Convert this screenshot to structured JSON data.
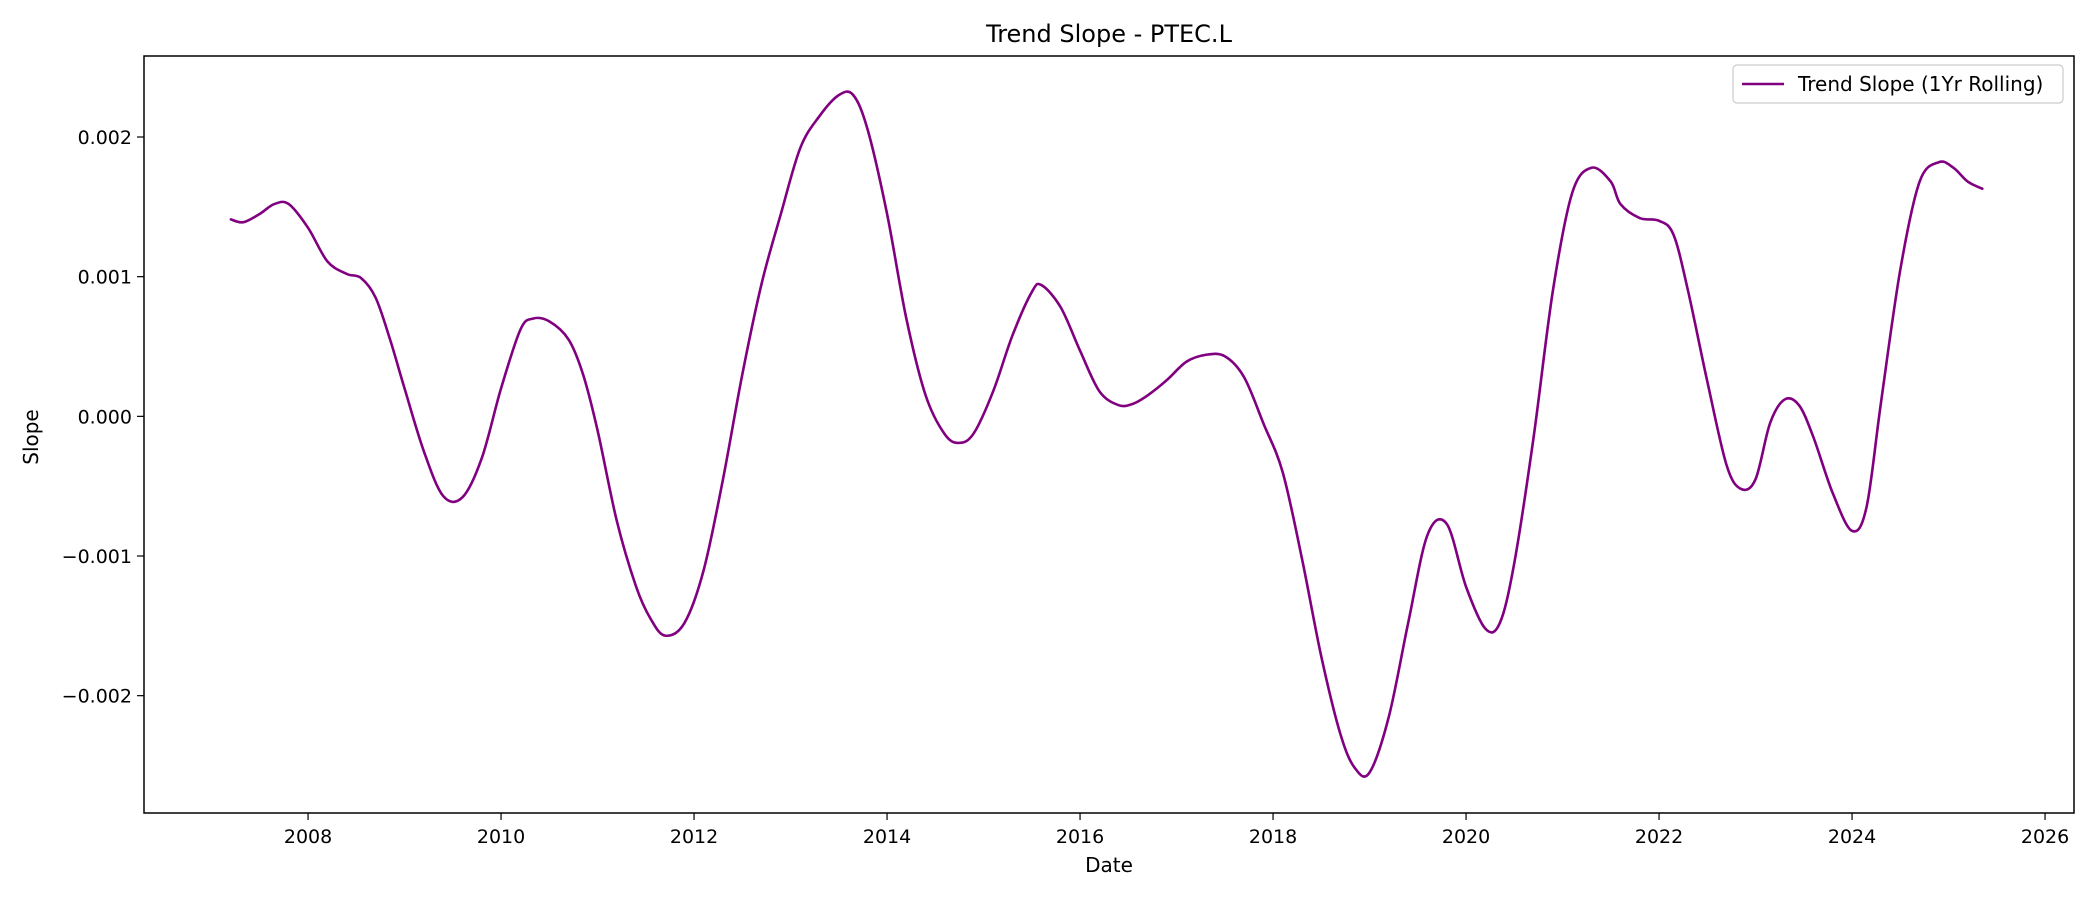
{
  "chart_data": {
    "type": "line",
    "title": "Trend Slope - PTEC.L",
    "xlabel": "Date",
    "ylabel": "Slope",
    "x_axis": "date",
    "xlim": [
      2006.3,
      2026.3
    ],
    "ylim": [
      -0.00284,
      0.00258
    ],
    "xticks": [
      2008,
      2010,
      2012,
      2014,
      2016,
      2018,
      2020,
      2022,
      2024,
      2026
    ],
    "xtick_labels": [
      "2008",
      "2010",
      "2012",
      "2014",
      "2016",
      "2018",
      "2020",
      "2022",
      "2024",
      "2026"
    ],
    "yticks": [
      -0.002,
      -0.001,
      0.0,
      0.001,
      0.002
    ],
    "ytick_labels": [
      "−0.002",
      "−0.001",
      "0.000",
      "0.001",
      "0.002"
    ],
    "grid": false,
    "legend": "top-right",
    "color": "#800080",
    "series": [
      {
        "name": "Trend Slope (1Yr Rolling)",
        "x": [
          2007.2,
          2007.33,
          2007.5,
          2007.65,
          2007.8,
          2008.0,
          2008.2,
          2008.4,
          2008.55,
          2008.7,
          2008.85,
          2009.0,
          2009.2,
          2009.4,
          2009.6,
          2009.8,
          2010.0,
          2010.2,
          2010.33,
          2010.5,
          2010.7,
          2010.85,
          2011.0,
          2011.2,
          2011.4,
          2011.55,
          2011.7,
          2011.9,
          2012.1,
          2012.3,
          2012.5,
          2012.7,
          2012.9,
          2013.1,
          2013.3,
          2013.5,
          2013.65,
          2013.8,
          2014.0,
          2014.2,
          2014.4,
          2014.6,
          2014.75,
          2014.9,
          2015.1,
          2015.3,
          2015.5,
          2015.6,
          2015.8,
          2016.0,
          2016.2,
          2016.4,
          2016.55,
          2016.7,
          2016.9,
          2017.1,
          2017.3,
          2017.5,
          2017.7,
          2017.9,
          2018.1,
          2018.3,
          2018.5,
          2018.7,
          2018.85,
          2019.0,
          2019.2,
          2019.4,
          2019.6,
          2019.8,
          2020.0,
          2020.2,
          2020.35,
          2020.5,
          2020.7,
          2020.9,
          2021.1,
          2021.3,
          2021.5,
          2021.6,
          2021.8,
          2022.0,
          2022.15,
          2022.3,
          2022.5,
          2022.7,
          2022.85,
          2023.0,
          2023.15,
          2023.3,
          2023.45,
          2023.6,
          2023.8,
          2024.0,
          2024.15,
          2024.3,
          2024.5,
          2024.7,
          2024.9,
          2025.05,
          2025.2,
          2025.35
        ],
        "y": [
          0.00141,
          0.00139,
          0.00145,
          0.00152,
          0.00152,
          0.00135,
          0.00111,
          0.00102,
          0.00099,
          0.00085,
          0.00055,
          0.0002,
          -0.00025,
          -0.00057,
          -0.00058,
          -0.0003,
          0.0002,
          0.00062,
          0.0007,
          0.00068,
          0.00055,
          0.0003,
          -0.0001,
          -0.00075,
          -0.00122,
          -0.00145,
          -0.00157,
          -0.00148,
          -0.0011,
          -0.00045,
          0.0003,
          0.00095,
          0.00145,
          0.00192,
          0.00215,
          0.0023,
          0.0023,
          0.00205,
          0.00145,
          0.0007,
          0.00015,
          -0.00013,
          -0.00019,
          -0.00012,
          0.00018,
          0.00058,
          0.00089,
          0.00094,
          0.00078,
          0.00047,
          0.00018,
          8e-05,
          9e-05,
          0.00015,
          0.00026,
          0.00039,
          0.00044,
          0.00043,
          0.00028,
          -5e-05,
          -0.0004,
          -0.00102,
          -0.00172,
          -0.00228,
          -0.00252,
          -0.00255,
          -0.00215,
          -0.00148,
          -0.00085,
          -0.00077,
          -0.00122,
          -0.00152,
          -0.00148,
          -0.00105,
          -0.00015,
          0.0009,
          0.0016,
          0.00178,
          0.00168,
          0.00152,
          0.00142,
          0.0014,
          0.0013,
          0.0009,
          0.00025,
          -0.00035,
          -0.00052,
          -0.00045,
          -5e-05,
          0.00012,
          8e-05,
          -0.00015,
          -0.00055,
          -0.00082,
          -0.00065,
          0.0001,
          0.00105,
          0.00168,
          0.00182,
          0.00178,
          0.00168,
          0.00163
        ]
      }
    ]
  }
}
